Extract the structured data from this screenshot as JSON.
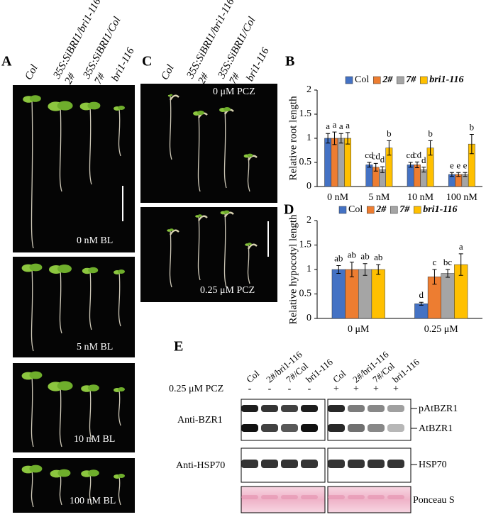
{
  "figure": {
    "panel_labels": [
      "A",
      "B",
      "C",
      "D",
      "E"
    ],
    "panel_a": {
      "columns": [
        "Col",
        "35S:SiBRI1/bri1-116",
        "2#",
        "35S:SiBRI1/Col",
        "7#",
        "bri1-116"
      ],
      "treatments": [
        "0 nM BL",
        "5 nM BL",
        "10 nM BL",
        "100 nM BL"
      ]
    },
    "panel_c": {
      "columns": [
        "Col",
        "35S:SiBRI1/bri1-116",
        "2#",
        "35S:SiBRI1/Col",
        "7#",
        "bri1-116"
      ],
      "treatments": [
        "0 μM PCZ",
        "0.25 μM PCZ"
      ]
    },
    "panel_e": {
      "columns": [
        "Col",
        "2#/bri1-116",
        "7#/Col",
        "bri1-116",
        "Col",
        "2#/bri1-116",
        "7#/Col",
        "bri1-116"
      ],
      "treatment": "0.25 μM PCZ",
      "signs": [
        "-",
        "-",
        "-",
        "-",
        "+",
        "+",
        "+",
        "+"
      ],
      "rows": [
        "Anti-BZR1",
        "Anti-HSP70"
      ],
      "bands": [
        "pAtBZR1",
        "AtBZR1",
        "HSP70",
        "Ponceau S"
      ]
    }
  },
  "chart_data": [
    {
      "type": "bar",
      "ylabel": "Relative root length",
      "categories": [
        "0 nM",
        "5 nM",
        "10 nM",
        "100 nM"
      ],
      "ylim": [
        0,
        2
      ],
      "yticks": [
        0,
        0.5,
        1,
        1.5,
        2
      ],
      "series": [
        {
          "name": "Col",
          "color": "#4472c4",
          "values": [
            1,
            0.45,
            0.45,
            0.25
          ],
          "errors": [
            0.1,
            0.05,
            0.05,
            0.04
          ],
          "letters": [
            "a",
            "cd",
            "cd",
            "e"
          ]
        },
        {
          "name": "2#",
          "color": "#ed7d31",
          "values": [
            1,
            0.4,
            0.45,
            0.25
          ],
          "errors": [
            0.13,
            0.08,
            0.06,
            0.04
          ],
          "letters": [
            "a",
            "cd",
            "cd",
            "e"
          ]
        },
        {
          "name": "7#",
          "color": "#a5a5a5",
          "values": [
            1,
            0.35,
            0.35,
            0.25
          ],
          "errors": [
            0.1,
            0.06,
            0.05,
            0.04
          ],
          "letters": [
            "a",
            "d",
            "d",
            "e"
          ]
        },
        {
          "name": "bri1-116",
          "color": "#ffc000",
          "values": [
            1,
            0.8,
            0.8,
            0.88
          ],
          "errors": [
            0.12,
            0.15,
            0.15,
            0.2
          ],
          "letters": [
            "a",
            "b",
            "b",
            "b"
          ]
        }
      ]
    },
    {
      "type": "bar",
      "ylabel": "Relative hypocotyl length",
      "categories": [
        "0 μM",
        "0.25 μM"
      ],
      "ylim": [
        0,
        2
      ],
      "yticks": [
        0,
        0.5,
        1,
        1.5,
        2
      ],
      "series": [
        {
          "name": "Col",
          "color": "#4472c4",
          "values": [
            1,
            0.3
          ],
          "errors": [
            0.08,
            0.03
          ],
          "letters": [
            "ab",
            "d"
          ]
        },
        {
          "name": "2#",
          "color": "#ed7d31",
          "values": [
            1,
            0.85
          ],
          "errors": [
            0.15,
            0.15
          ],
          "letters": [
            "ab",
            "c"
          ]
        },
        {
          "name": "7#",
          "color": "#a5a5a5",
          "values": [
            1,
            0.92
          ],
          "errors": [
            0.12,
            0.08
          ],
          "letters": [
            "ab",
            "bc"
          ]
        },
        {
          "name": "bri1-116",
          "color": "#ffc000",
          "values": [
            1,
            1.1
          ],
          "errors": [
            0.1,
            0.22
          ],
          "letters": [
            "ab",
            "a"
          ]
        }
      ]
    }
  ]
}
